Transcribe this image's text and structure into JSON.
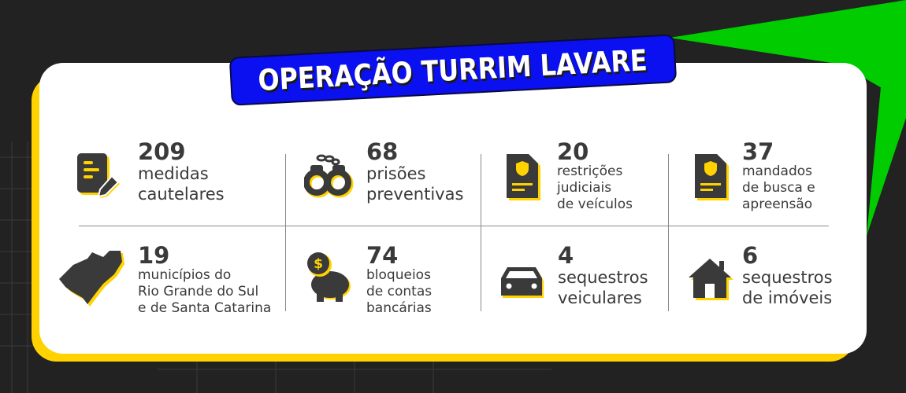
{
  "title": "OPERAÇÃO TURRIM LAVARE",
  "colors": {
    "background": "#222222",
    "accent_green": "#00cc00",
    "accent_yellow": "#ffd200",
    "banner_blue": "#0a10f0",
    "text": "#3a3a3a"
  },
  "stats": [
    {
      "value": "209",
      "lines": [
        "medidas",
        "cautelares"
      ],
      "icon": "document-pen-icon"
    },
    {
      "value": "68",
      "lines": [
        "prisões",
        "preventivas"
      ],
      "icon": "handcuffs-icon"
    },
    {
      "value": "20",
      "lines": [
        "restrições",
        "judiciais",
        "de veículos"
      ],
      "icon": "badge-document-icon"
    },
    {
      "value": "37",
      "lines": [
        "mandados",
        "de busca e",
        "apreensão"
      ],
      "icon": "badge-document-icon"
    },
    {
      "value": "19",
      "lines": [
        "municípios do",
        "Rio Grande do Sul",
        "e de Santa Catarina"
      ],
      "icon": "state-map-icon"
    },
    {
      "value": "74",
      "lines": [
        "bloqueios",
        "de contas",
        "bancárias"
      ],
      "icon": "piggy-bank-icon"
    },
    {
      "value": "4",
      "lines": [
        "sequestros",
        "veiculares"
      ],
      "icon": "car-icon"
    },
    {
      "value": "6",
      "lines": [
        "sequestros",
        "de imóveis"
      ],
      "icon": "house-icon"
    }
  ]
}
